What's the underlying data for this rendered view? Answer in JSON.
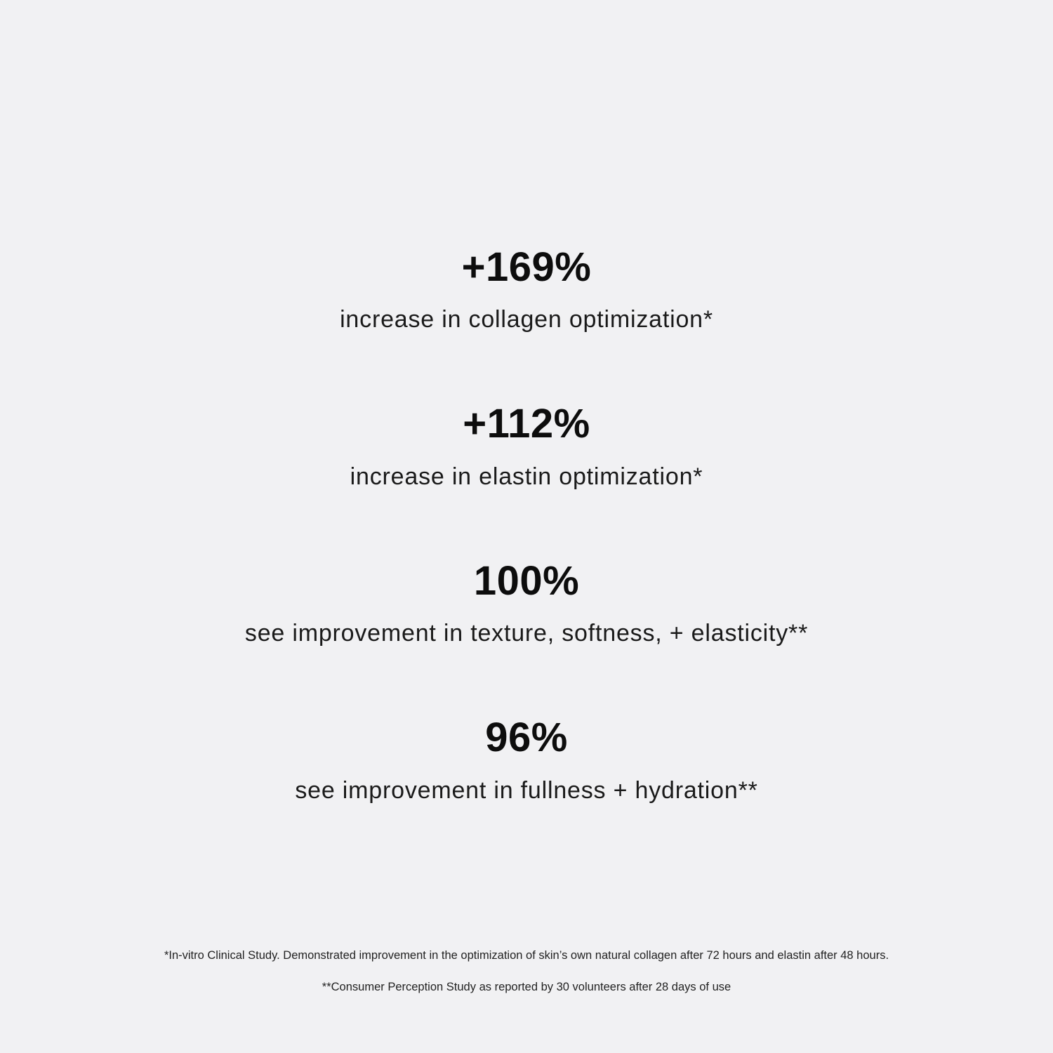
{
  "stats": [
    {
      "value": "+169%",
      "description": "increase in collagen optimization*"
    },
    {
      "value": "+112%",
      "description": "increase in elastin optimization*"
    },
    {
      "value": "100%",
      "description": "see improvement in texture, softness, + elasticity**"
    },
    {
      "value": "96%",
      "description": "see improvement in fullness + hydration**"
    }
  ],
  "footnotes": [
    "*In-vitro Clinical Study. Demonstrated improvement in the optimization of skin’s own natural collagen after 72 hours and elastin after 48 hours.",
    "**Consumer Perception Study as reported by 30 volunteers after 28 days of use"
  ],
  "colors": {
    "background": "#f1f1f3",
    "text": "#111111"
  }
}
